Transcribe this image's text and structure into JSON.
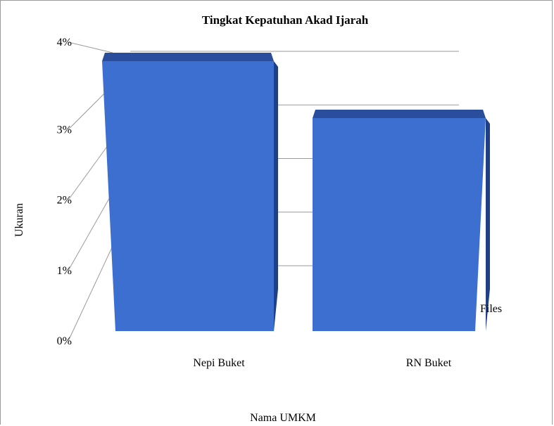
{
  "chart_data": {
    "type": "bar",
    "title": "Tingkat Kepatuhan Akad Ijarah",
    "xlabel": "Nama UMKM",
    "ylabel": "Ukuran",
    "categories": [
      "Nepi Buket",
      "RN Buket"
    ],
    "series": [
      {
        "name": "Files",
        "values": [
          3.75,
          2.9
        ]
      }
    ],
    "ylim": [
      0,
      4
    ],
    "yticks": [
      "0%",
      "1%",
      "2%",
      "3%",
      "4%"
    ],
    "grid": true,
    "legend": "right",
    "style": "3d",
    "colors": {
      "bar_front": "#3d6fd1",
      "bar_side": "#1f3f86",
      "bar_top": "#2a4d9c",
      "grid": "#9a9a9a"
    }
  }
}
